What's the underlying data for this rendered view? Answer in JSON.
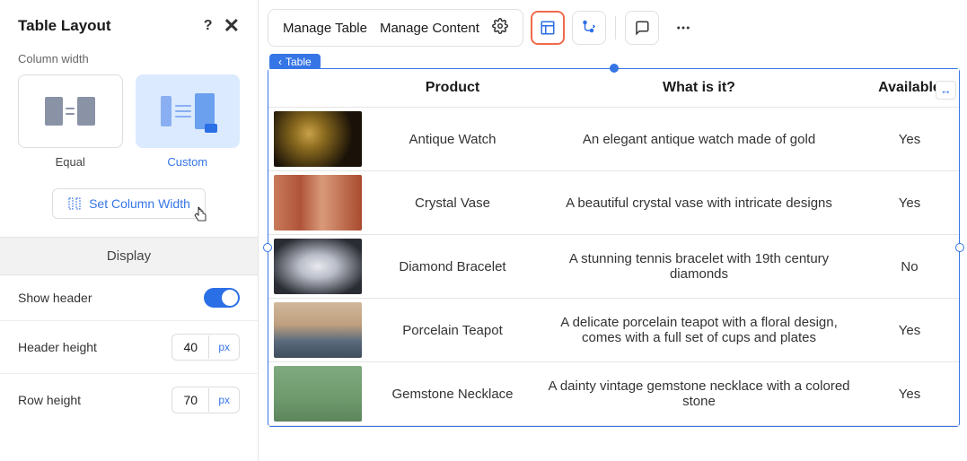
{
  "sidebar": {
    "title": "Table Layout",
    "column_width_label": "Column width",
    "modes": {
      "equal": "Equal",
      "custom": "Custom"
    },
    "set_width_btn": "Set Column Width",
    "display_header": "Display",
    "show_header_label": "Show header",
    "header_height_label": "Header height",
    "header_height_value": "40",
    "row_height_label": "Row height",
    "row_height_value": "70",
    "unit": "px"
  },
  "toolbar": {
    "manage_table": "Manage Table",
    "manage_content": "Manage Content"
  },
  "breadcrumb": {
    "parent_prefix": "‹",
    "label": "Table"
  },
  "table": {
    "headers": [
      "",
      "Product",
      "What is it?",
      "Available"
    ],
    "rows": [
      {
        "img_grad": "radial-gradient(circle at 40% 40%, #c9a24a 0%, #8a6a1e 25%, #1a1208 70%)",
        "product": "Antique Watch",
        "desc": "An elegant antique watch made of gold",
        "avail": "Yes"
      },
      {
        "img_grad": "linear-gradient(90deg,#c97b5a 0%,#b0543a 30%,#d99a7a 55%,#a94a2e 100%)",
        "product": "Crystal Vase",
        "desc": "A beautiful crystal vase with intricate designs",
        "avail": "Yes"
      },
      {
        "img_grad": "radial-gradient(ellipse at 50% 50%, #e8e9ee 0%, #b9bdc8 30%, #2a2c33 80%)",
        "product": "Diamond Bracelet",
        "desc": "A stunning tennis bracelet with 19th century diamonds",
        "avail": "No"
      },
      {
        "img_grad": "linear-gradient(180deg,#d1b79b 0%,#bfa07f 40%,#5a6a7d 70%,#3f4d5c 100%)",
        "product": "Porcelain Teapot",
        "desc": "A delicate porcelain teapot with a floral design, comes with a full set of cups and plates",
        "avail": "Yes"
      },
      {
        "img_grad": "linear-gradient(180deg,#7fa97e 0%,#6e996d 60%,#5d855c 100%)",
        "product": "Gemstone Necklace",
        "desc": "A dainty vintage gemstone necklace with a colored stone",
        "avail": "Yes"
      }
    ]
  },
  "colors": {
    "accent": "#3575e6",
    "active_border": "#f06a4a"
  }
}
